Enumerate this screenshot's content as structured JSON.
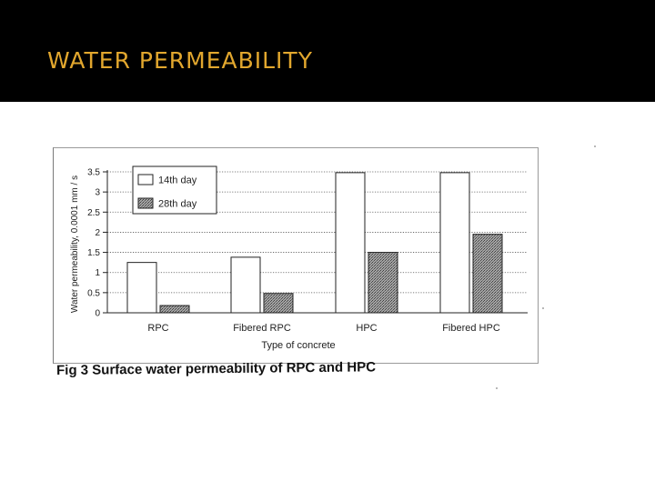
{
  "slide": {
    "title": "WATER PERMEABILITY"
  },
  "figure": {
    "caption": "Fig 3 Surface water permeability of RPC and HPC"
  },
  "colors": {
    "header_bg": "#000000",
    "title_text": "#e2a72e",
    "bar_14th_day": "#ffffff",
    "bar_28th_day": "#9a9a9a"
  },
  "chart_data": {
    "type": "bar",
    "categories": [
      "RPC",
      "Fibered RPC",
      "HPC",
      "Fibered HPC"
    ],
    "series": [
      {
        "name": "14th day",
        "values": [
          1.25,
          1.38,
          3.48,
          3.48
        ]
      },
      {
        "name": "28th day",
        "values": [
          0.18,
          0.48,
          1.5,
          1.95
        ]
      }
    ],
    "xlabel": "Type of concrete",
    "ylabel": "Water permeability, 0.0001 mm / s",
    "ylim": [
      0,
      3.5
    ],
    "yticks": [
      0,
      0.5,
      1,
      1.5,
      2,
      2.5,
      3,
      3.5
    ],
    "ytick_labels": [
      "0",
      "0.5",
      "1",
      "1.5",
      "2",
      "2.5",
      "3",
      "3.5"
    ],
    "grid": "horizontal dotted",
    "legend_position": "top-left"
  }
}
